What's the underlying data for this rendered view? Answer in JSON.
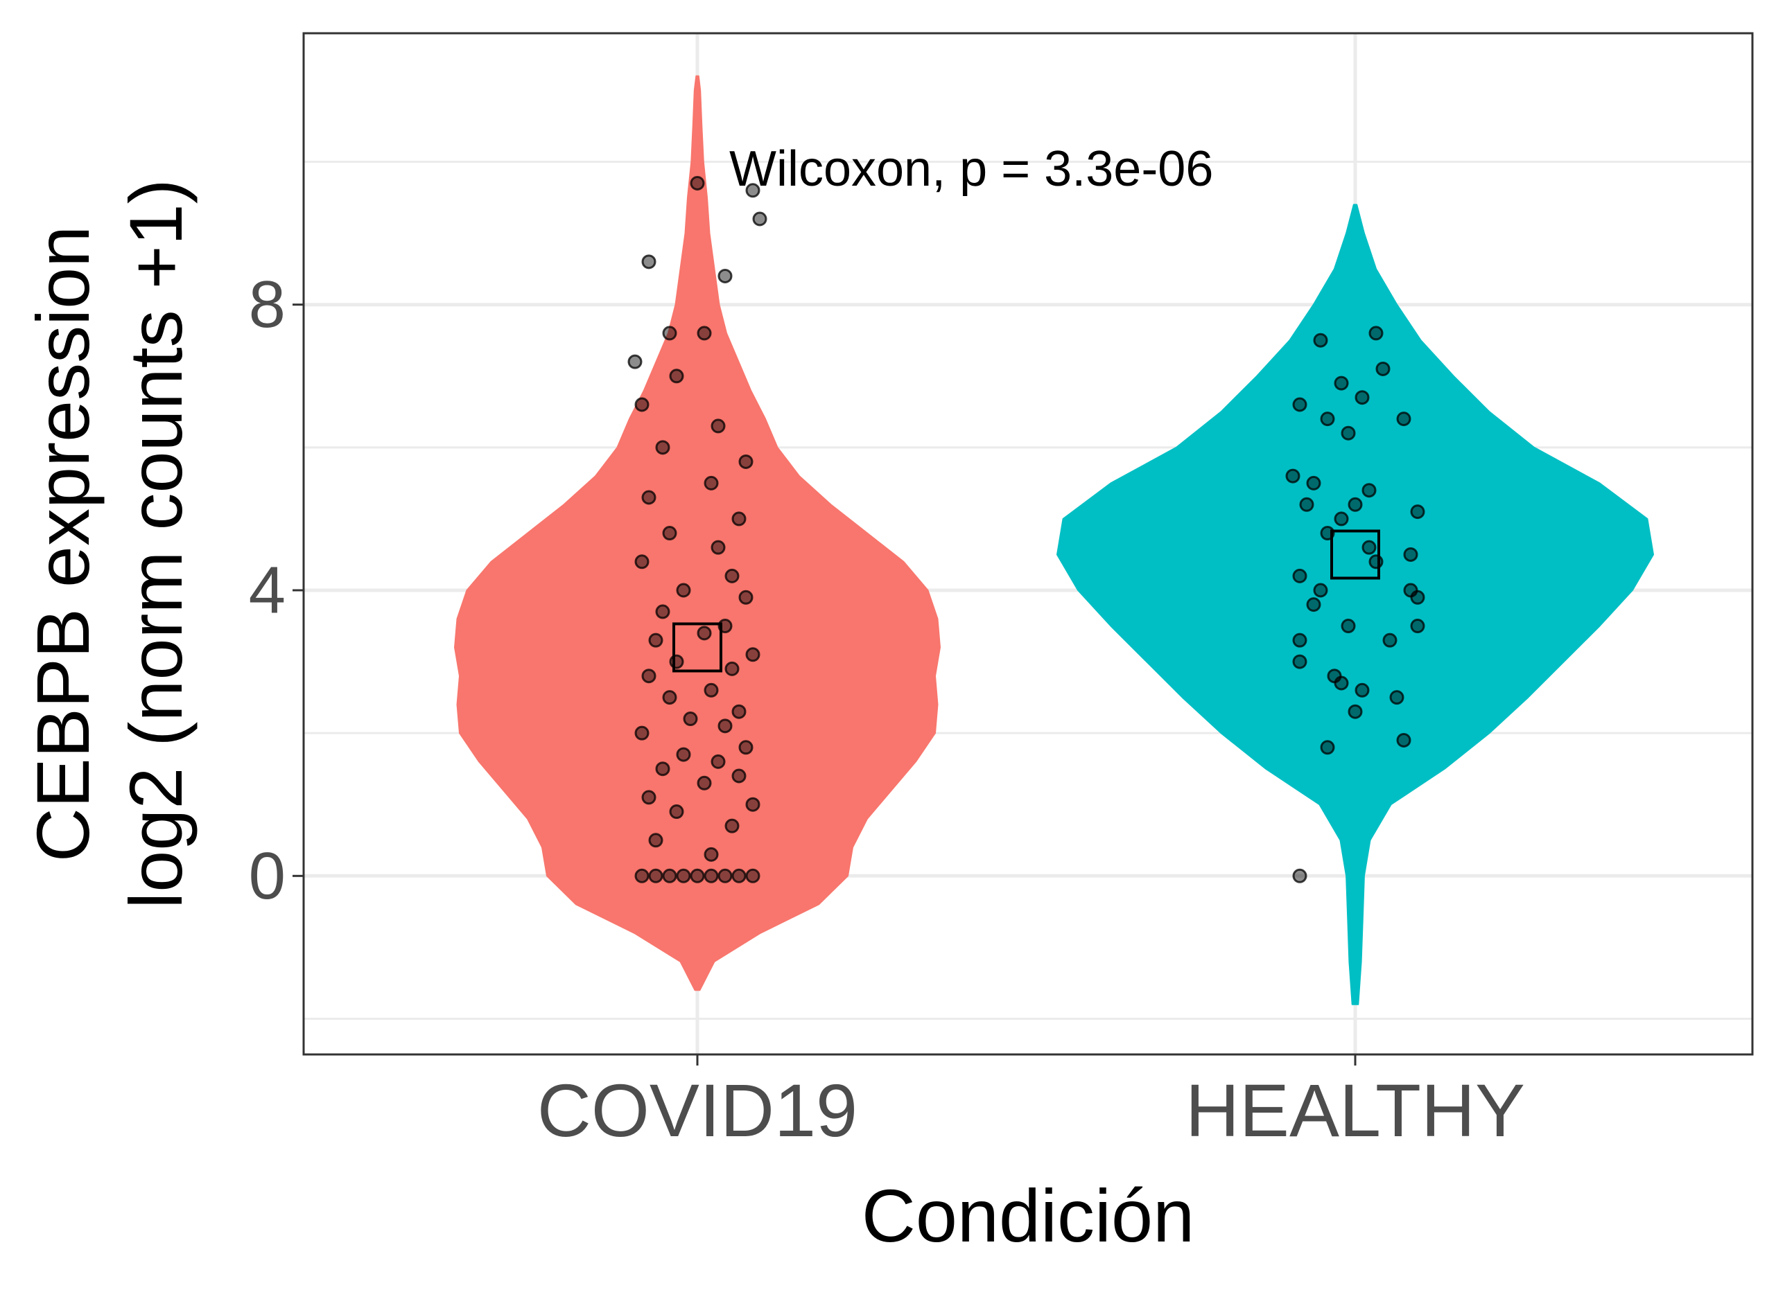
{
  "chart_data": {
    "type": "violin",
    "title": "",
    "xlabel": "Condición",
    "ylabel_lines": [
      "CEBPB expression",
      "log2 (norm counts +1)"
    ],
    "categories": [
      "COVID19",
      "HEALTHY"
    ],
    "ylim": [
      -2.5,
      11.8
    ],
    "yticks": [
      0,
      4,
      8
    ],
    "ytick_labels": [
      "0",
      "4",
      "8"
    ],
    "grid": true,
    "legend": "none",
    "annotation": "Wilcoxon, p = 3.3e-06",
    "series": [
      {
        "category": "COVID19",
        "color": "#F8766D",
        "mean": 3.2,
        "range": [
          -1.6,
          11.2
        ],
        "profile": [
          [
            -1.6,
            0.01
          ],
          [
            -1.2,
            0.07
          ],
          [
            -0.8,
            0.26
          ],
          [
            -0.4,
            0.5
          ],
          [
            0.0,
            0.62
          ],
          [
            0.4,
            0.64
          ],
          [
            0.8,
            0.7
          ],
          [
            1.2,
            0.8
          ],
          [
            1.6,
            0.9
          ],
          [
            2.0,
            0.98
          ],
          [
            2.4,
            0.99
          ],
          [
            2.8,
            0.98
          ],
          [
            3.2,
            1.0
          ],
          [
            3.6,
            0.99
          ],
          [
            4.0,
            0.95
          ],
          [
            4.4,
            0.85
          ],
          [
            4.8,
            0.7
          ],
          [
            5.2,
            0.55
          ],
          [
            5.6,
            0.42
          ],
          [
            6.0,
            0.33
          ],
          [
            6.4,
            0.28
          ],
          [
            6.8,
            0.22
          ],
          [
            7.2,
            0.17
          ],
          [
            7.6,
            0.12
          ],
          [
            8.0,
            0.09
          ],
          [
            8.5,
            0.07
          ],
          [
            9.0,
            0.05
          ],
          [
            9.5,
            0.04
          ],
          [
            10.0,
            0.025
          ],
          [
            10.5,
            0.018
          ],
          [
            11.0,
            0.012
          ],
          [
            11.2,
            0.005
          ]
        ],
        "points": [
          [
            0.0,
            -0.08
          ],
          [
            0.0,
            -0.06
          ],
          [
            0.0,
            -0.04
          ],
          [
            0.0,
            -0.02
          ],
          [
            0.0,
            0.0
          ],
          [
            0.0,
            0.02
          ],
          [
            0.0,
            0.04
          ],
          [
            0.0,
            0.06
          ],
          [
            0.0,
            0.08
          ],
          [
            0.3,
            0.02
          ],
          [
            0.5,
            -0.06
          ],
          [
            0.7,
            0.05
          ],
          [
            0.9,
            -0.03
          ],
          [
            1.0,
            0.08
          ],
          [
            1.1,
            -0.07
          ],
          [
            1.3,
            0.01
          ],
          [
            1.4,
            0.06
          ],
          [
            1.5,
            -0.05
          ],
          [
            1.6,
            0.03
          ],
          [
            1.7,
            -0.02
          ],
          [
            1.8,
            0.07
          ],
          [
            2.0,
            -0.08
          ],
          [
            2.1,
            0.04
          ],
          [
            2.2,
            -0.01
          ],
          [
            2.3,
            0.06
          ],
          [
            2.5,
            -0.04
          ],
          [
            2.6,
            0.02
          ],
          [
            2.8,
            -0.07
          ],
          [
            2.9,
            0.05
          ],
          [
            3.0,
            -0.03
          ],
          [
            3.1,
            0.08
          ],
          [
            3.3,
            -0.06
          ],
          [
            3.4,
            0.01
          ],
          [
            3.5,
            0.04
          ],
          [
            3.7,
            -0.05
          ],
          [
            3.9,
            0.07
          ],
          [
            4.0,
            -0.02
          ],
          [
            4.2,
            0.05
          ],
          [
            4.4,
            -0.08
          ],
          [
            4.6,
            0.03
          ],
          [
            4.8,
            -0.04
          ],
          [
            5.0,
            0.06
          ],
          [
            5.3,
            -0.07
          ],
          [
            5.5,
            0.02
          ],
          [
            5.8,
            0.07
          ],
          [
            6.0,
            -0.05
          ],
          [
            6.3,
            0.03
          ],
          [
            6.6,
            -0.08
          ],
          [
            7.0,
            -0.03
          ],
          [
            7.2,
            -0.09
          ],
          [
            7.6,
            -0.04
          ],
          [
            7.6,
            0.01
          ],
          [
            8.6,
            -0.07
          ],
          [
            8.4,
            0.04
          ],
          [
            9.7,
            0.0
          ],
          [
            9.6,
            0.08
          ],
          [
            9.2,
            0.09
          ]
        ]
      },
      {
        "category": "HEALTHY",
        "color": "#00BFC4",
        "mean": 4.5,
        "range": [
          -1.8,
          9.4
        ],
        "profile": [
          [
            -1.8,
            0.01
          ],
          [
            -1.2,
            0.02
          ],
          [
            -0.6,
            0.025
          ],
          [
            0.0,
            0.03
          ],
          [
            0.5,
            0.05
          ],
          [
            1.0,
            0.12
          ],
          [
            1.5,
            0.3
          ],
          [
            2.0,
            0.45
          ],
          [
            2.5,
            0.58
          ],
          [
            3.0,
            0.7
          ],
          [
            3.5,
            0.82
          ],
          [
            4.0,
            0.93
          ],
          [
            4.5,
            1.0
          ],
          [
            5.0,
            0.98
          ],
          [
            5.5,
            0.82
          ],
          [
            6.0,
            0.6
          ],
          [
            6.5,
            0.45
          ],
          [
            7.0,
            0.33
          ],
          [
            7.5,
            0.22
          ],
          [
            8.0,
            0.14
          ],
          [
            8.5,
            0.07
          ],
          [
            9.0,
            0.03
          ],
          [
            9.4,
            0.005
          ]
        ],
        "points": [
          [
            0.0,
            -0.08
          ],
          [
            1.8,
            -0.04
          ],
          [
            1.9,
            0.07
          ],
          [
            2.3,
            0.0
          ],
          [
            2.5,
            0.06
          ],
          [
            2.6,
            0.01
          ],
          [
            2.7,
            -0.02
          ],
          [
            2.8,
            -0.03
          ],
          [
            3.0,
            -0.08
          ],
          [
            3.3,
            -0.08
          ],
          [
            3.3,
            0.05
          ],
          [
            3.5,
            0.09
          ],
          [
            3.5,
            -0.01
          ],
          [
            3.8,
            -0.06
          ],
          [
            3.9,
            0.09
          ],
          [
            4.0,
            -0.05
          ],
          [
            4.0,
            0.08
          ],
          [
            4.2,
            -0.08
          ],
          [
            4.4,
            0.03
          ],
          [
            4.5,
            0.08
          ],
          [
            4.6,
            0.02
          ],
          [
            4.8,
            -0.04
          ],
          [
            5.0,
            -0.02
          ],
          [
            5.1,
            0.09
          ],
          [
            5.2,
            -0.07
          ],
          [
            5.2,
            0.0
          ],
          [
            5.4,
            0.02
          ],
          [
            5.5,
            -0.06
          ],
          [
            5.6,
            -0.09
          ],
          [
            6.2,
            -0.01
          ],
          [
            6.4,
            -0.04
          ],
          [
            6.4,
            0.07
          ],
          [
            6.6,
            -0.08
          ],
          [
            6.7,
            0.01
          ],
          [
            6.9,
            -0.02
          ],
          [
            7.1,
            0.04
          ],
          [
            7.5,
            -0.05
          ],
          [
            7.6,
            0.03
          ]
        ]
      }
    ]
  }
}
